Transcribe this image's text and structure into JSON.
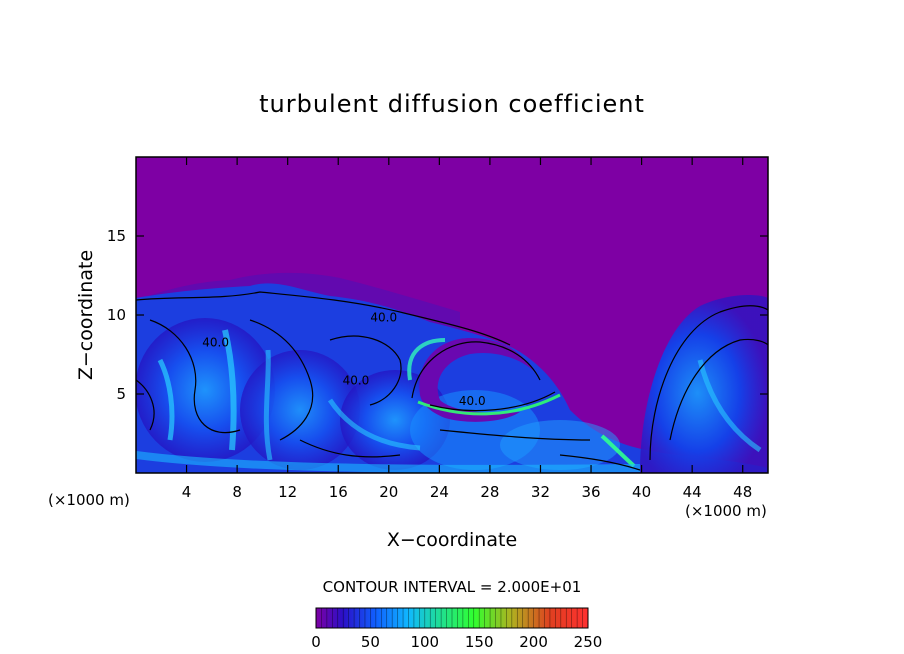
{
  "chart_data": {
    "type": "heatmap",
    "title": "turbulent diffusion coefficient",
    "xlabel": "X−coordinate",
    "ylabel": "Z−coordinate",
    "x_unit_left": "(×1000 m)",
    "x_unit_right": "(×1000 m)",
    "xlim": [
      0,
      50
    ],
    "ylim": [
      0,
      20
    ],
    "x_ticks": [
      4,
      8,
      12,
      16,
      20,
      24,
      28,
      32,
      36,
      40,
      44,
      48
    ],
    "x_tick_labels": [
      "4",
      "8",
      "12",
      "16",
      "20",
      "24",
      "28",
      "32",
      "36",
      "40",
      "44",
      "48"
    ],
    "y_ticks": [
      5,
      10,
      15
    ],
    "y_tick_labels": [
      "5",
      "10",
      "15"
    ],
    "contour_labels": [
      {
        "text": "40.0",
        "x": 19.6,
        "z": 9.6
      },
      {
        "text": "40.0",
        "x": 6.3,
        "z": 8.0
      },
      {
        "text": "40.0",
        "x": 17.4,
        "z": 5.6
      },
      {
        "text": "40.0",
        "x": 26.6,
        "z": 4.3
      }
    ],
    "contour_interval_text": "CONTOUR INTERVAL = 2.000E+01",
    "colorbar": {
      "min": 0,
      "max": 250,
      "tick_values": [
        0,
        50,
        100,
        150,
        200,
        250
      ],
      "tick_labels": [
        "0",
        "50",
        "100",
        "150",
        "200",
        "250"
      ],
      "stops": [
        {
          "value": 0,
          "color": "#7e00a4"
        },
        {
          "value": 25,
          "color": "#2a10c8"
        },
        {
          "value": 55,
          "color": "#1060ff"
        },
        {
          "value": 85,
          "color": "#10b8ff"
        },
        {
          "value": 115,
          "color": "#20e090"
        },
        {
          "value": 145,
          "color": "#30ff30"
        },
        {
          "value": 180,
          "color": "#b0b020"
        },
        {
          "value": 215,
          "color": "#e04020"
        },
        {
          "value": 250,
          "color": "#ff3030"
        }
      ]
    },
    "grid": false,
    "legend": "none"
  }
}
